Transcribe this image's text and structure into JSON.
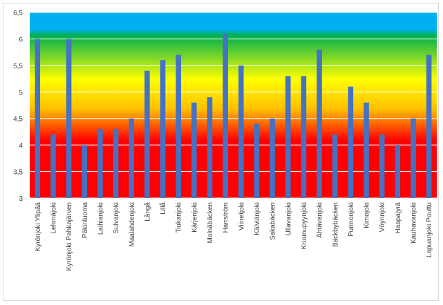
{
  "chart_data": {
    "type": "bar",
    "title": "",
    "xlabel": "",
    "ylabel": "",
    "ylim": [
      3,
      6.5
    ],
    "yticks": [
      3,
      3.5,
      4,
      4.5,
      5,
      5.5,
      6,
      6.5
    ],
    "ytick_labels": [
      "3",
      "3,5",
      "4",
      "4,5",
      "5",
      "5,5",
      "6",
      "6,5"
    ],
    "grid": true,
    "legend": "none",
    "bar_color": "#4472c4",
    "background_gradient": [
      "#00b0f0",
      "#00b050",
      "#ffff00",
      "#ffc000",
      "#ff0000"
    ],
    "categories": [
      "Kyrönjoki Ylipää",
      "Lehmäjoki",
      "Kyrönjoki Pahkajärven",
      "Päkinluoma",
      "Laihianjoki",
      "Sulvanjoki",
      "Maalahdenjoki",
      "Långå",
      "Lillå",
      "Tiukanjoki",
      "Kärjenjoki",
      "Molnäbäcken",
      "Harrström",
      "Viirretjoki",
      "Kälviänjoki",
      "Sakabäcken",
      "Ullavanjoki",
      "Kruunupyynjoki",
      "Ähtävänjoki",
      "Bäckbybäcken",
      "Purmonjoki",
      "Kimojoki",
      "Vöyrinjoki",
      "Haapajyrä",
      "Kauhavanjoki",
      "Lapuanjoki Pouttu"
    ],
    "values": [
      6.0,
      4.2,
      6.0,
      4.0,
      4.3,
      4.3,
      4.5,
      5.4,
      5.6,
      5.7,
      4.8,
      4.9,
      6.1,
      5.5,
      4.4,
      4.5,
      5.3,
      5.3,
      5.8,
      4.2,
      5.1,
      4.8,
      4.2,
      4.0,
      4.5,
      5.7
    ]
  }
}
